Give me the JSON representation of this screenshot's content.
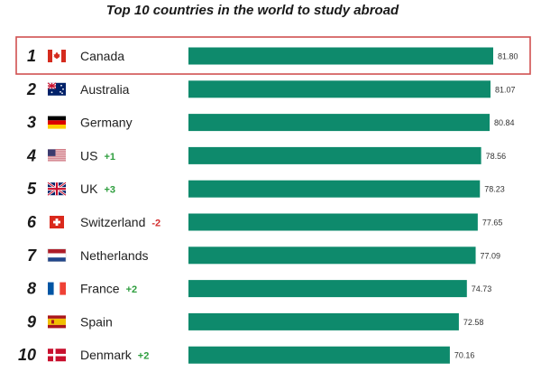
{
  "chart_data": {
    "type": "bar",
    "orientation": "horizontal",
    "title": "Top 10 countries in the world to study abroad",
    "xlim": [
      0,
      81.8
    ],
    "grid": false,
    "highlight_rank": 1,
    "colors": {
      "bar": "#0e8a6c",
      "up": "#2e9e3e",
      "down": "#d32f2f",
      "highlight_border": "#d05050"
    },
    "rows": [
      {
        "rank": "1",
        "country": "Canada",
        "change": "",
        "value": 81.8,
        "value_label": "81.80",
        "flag": "canada-flag-icon"
      },
      {
        "rank": "2",
        "country": "Australia",
        "change": "",
        "value": 81.07,
        "value_label": "81.07",
        "flag": "australia-flag-icon"
      },
      {
        "rank": "3",
        "country": "Germany",
        "change": "",
        "value": 80.84,
        "value_label": "80.84",
        "flag": "germany-flag-icon"
      },
      {
        "rank": "4",
        "country": "US",
        "change": "+1",
        "value": 78.56,
        "value_label": "78.56",
        "flag": "us-flag-icon"
      },
      {
        "rank": "5",
        "country": "UK",
        "change": "+3",
        "value": 78.23,
        "value_label": "78.23",
        "flag": "uk-flag-icon"
      },
      {
        "rank": "6",
        "country": "Switzerland",
        "change": "-2",
        "value": 77.65,
        "value_label": "77.65",
        "flag": "switzerland-flag-icon"
      },
      {
        "rank": "7",
        "country": "Netherlands",
        "change": "",
        "value": 77.09,
        "value_label": "77.09",
        "flag": "netherlands-flag-icon"
      },
      {
        "rank": "8",
        "country": "France",
        "change": "+2",
        "value": 74.73,
        "value_label": "74.73",
        "flag": "france-flag-icon"
      },
      {
        "rank": "9",
        "country": "Spain",
        "change": "",
        "value": 72.58,
        "value_label": "72.58",
        "flag": "spain-flag-icon"
      },
      {
        "rank": "10",
        "country": "Denmark",
        "change": "+2",
        "value": 70.16,
        "value_label": "70.16",
        "flag": "denmark-flag-icon"
      }
    ]
  }
}
